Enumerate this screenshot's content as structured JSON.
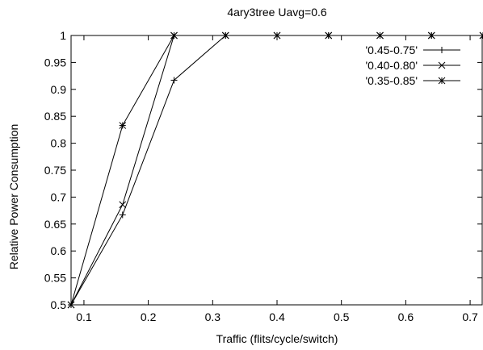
{
  "chart_data": {
    "type": "line",
    "title": "4ary3tree Uavg=0.6",
    "xlabel": "Traffic (flits/cycle/switch)",
    "ylabel": "Relative Power Consumption",
    "xlim": [
      0.08,
      0.72
    ],
    "ylim": [
      0.5,
      1.0
    ],
    "xticks": [
      "0.1",
      "0.2",
      "0.3",
      "0.4",
      "0.5",
      "0.6",
      "0.7"
    ],
    "yticks": [
      "0.5",
      "0.55",
      "0.6",
      "0.65",
      "0.7",
      "0.75",
      "0.8",
      "0.85",
      "0.9",
      "0.95",
      "1"
    ],
    "grid": false,
    "legend_position": "top-right",
    "series": [
      {
        "name": "'0.45-0.75'",
        "marker": "plus",
        "x": [
          0.08,
          0.16,
          0.24,
          0.32,
          0.4,
          0.48,
          0.56,
          0.64,
          0.72
        ],
        "y": [
          0.5,
          0.667,
          0.917,
          1.0,
          1.0,
          1.0,
          1.0,
          1.0,
          1.0
        ]
      },
      {
        "name": "'0.40-0.80'",
        "marker": "cross",
        "x": [
          0.08,
          0.16,
          0.24,
          0.32,
          0.4,
          0.48,
          0.56,
          0.64,
          0.72
        ],
        "y": [
          0.5,
          0.686,
          1.0,
          1.0,
          1.0,
          1.0,
          1.0,
          1.0,
          1.0
        ]
      },
      {
        "name": "'0.35-0.85'",
        "marker": "star",
        "x": [
          0.08,
          0.16,
          0.24,
          0.32,
          0.4,
          0.48,
          0.56,
          0.64,
          0.72
        ],
        "y": [
          0.5,
          0.833,
          1.0,
          1.0,
          1.0,
          1.0,
          1.0,
          1.0,
          1.0
        ]
      }
    ]
  }
}
